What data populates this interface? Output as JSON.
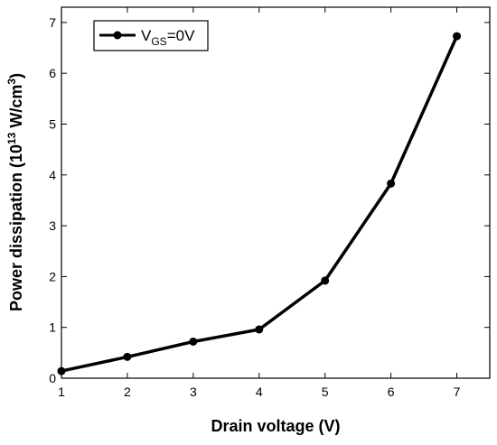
{
  "chart_data": {
    "type": "line",
    "xlabel": "Drain voltage (V)",
    "ylabel": {
      "pre": "Power dissipation (10",
      "sup1": "13",
      "mid": " W/cm",
      "sup2": "3",
      "post": ")"
    },
    "xlim": [
      1,
      7.5
    ],
    "ylim": [
      0,
      7.3
    ],
    "xticks": [
      1,
      2,
      3,
      4,
      5,
      6,
      7
    ],
    "yticks": [
      0,
      1,
      2,
      3,
      4,
      5,
      6,
      7
    ],
    "grid": false,
    "legend_position": "top-left",
    "series": [
      {
        "name": {
          "base": "V",
          "sub": "GS",
          "rest": "=0V"
        },
        "x": [
          1,
          2,
          3,
          4,
          5,
          6,
          7
        ],
        "y": [
          0.14,
          0.42,
          0.72,
          0.96,
          1.92,
          3.83,
          6.73
        ],
        "color": "#000000",
        "marker": "circle"
      }
    ]
  }
}
